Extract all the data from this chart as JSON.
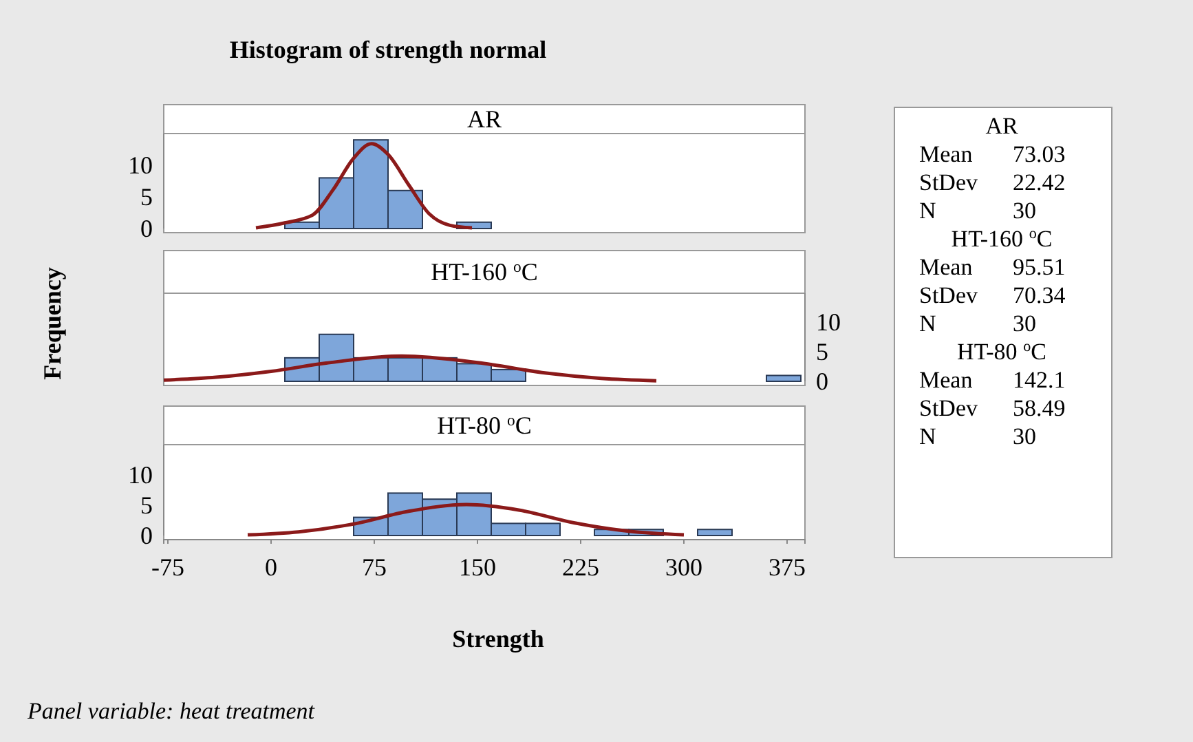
{
  "chart_data": [
    {
      "type": "other",
      "title": "Histogram of strength normal",
      "annotations": [
        "AR",
        "Mean",
        "73.03",
        "StDev",
        "22.42",
        "N",
        "30",
        "HT-160 $^{o}$C",
        "Mean",
        "95.51",
        "StDev",
        "70.34",
        "N",
        "30",
        "HT-80 $^{o}$C",
        "Mean",
        "142.1",
        "StDev",
        "58.49",
        "N",
        "30",
        "Panel variable: heat treatment"
      ]
    },
    {
      "type": "histogram",
      "title": "AR",
      "bins": [
        10,
        35,
        60,
        85,
        110,
        135,
        160,
        185,
        210,
        235,
        260,
        285,
        310,
        335,
        360,
        385
      ],
      "xlim": [
        -78,
        388
      ],
      "ylim": [
        0,
        15
      ],
      "yticks": [
        0,
        5,
        10
      ],
      "tick_labels": "y",
      "series": [
        {
          "type": "histogram",
          "color": "#7ea6da",
          "values": [
            1,
            8,
            14,
            6,
            0,
            1,
            0,
            0,
            0,
            0,
            0,
            0,
            0,
            0,
            0
          ]
        },
        {
          "type": "line",
          "color": "#8b1a1a",
          "x": [
            -11,
            10,
            30,
            45,
            60,
            73,
            85,
            100,
            115,
            130,
            146
          ],
          "values": [
            0.1,
            0.9,
            2.1,
            6.1,
            11.1,
            13.4,
            11.7,
            6.9,
            2.3,
            0.5,
            0.1
          ]
        }
      ]
    },
    {
      "type": "histogram",
      "title": "HT-160 $^{o}$C",
      "ylabel": "Frequency",
      "bins": [
        10,
        35,
        60,
        85,
        110,
        135,
        160,
        185,
        210,
        235,
        260,
        285,
        310,
        335,
        360,
        385
      ],
      "xlim": [
        -78,
        388
      ],
      "y2lim": [
        0,
        15
      ],
      "y2ticks": [
        0,
        5,
        10
      ],
      "tick_labels": "y",
      "series": [
        {
          "type": "histogram",
          "axis": "y2",
          "color": "#7ea6da",
          "values": [
            4,
            8,
            4,
            4,
            4,
            3,
            2,
            0,
            0,
            0,
            0,
            0,
            0,
            0,
            1
          ]
        },
        {
          "type": "line",
          "axis": "y2",
          "color": "#8b1a1a",
          "x": [
            -78,
            -40,
            0,
            40,
            95,
            150,
            200,
            240,
            280
          ],
          "values": [
            0.2,
            0.7,
            1.7,
            3.1,
            4.3,
            3.2,
            1.4,
            0.5,
            0.1
          ]
        }
      ]
    },
    {
      "type": "histogram",
      "title": "HT-80 $^{o}$C",
      "xlabel": "Strength",
      "bins": [
        60,
        85,
        110,
        135,
        160,
        185,
        210,
        235,
        260,
        285,
        310,
        335
      ],
      "xlim": [
        -78,
        388
      ],
      "xticks": [
        -75,
        0,
        75,
        150,
        225,
        300,
        375
      ],
      "ylim": [
        0,
        15
      ],
      "yticks": [
        0,
        5,
        10
      ],
      "series": [
        {
          "type": "histogram",
          "color": "#7ea6da",
          "values": [
            3,
            7,
            6,
            7,
            2,
            2,
            0,
            1,
            1,
            0,
            1
          ]
        },
        {
          "type": "line",
          "color": "#8b1a1a",
          "x": [
            -17,
            20,
            60,
            100,
            142,
            180,
            220,
            260,
            300
          ],
          "values": [
            0.1,
            0.6,
            1.9,
            4,
            5.1,
            4.2,
            2.1,
            0.7,
            0.1
          ]
        }
      ]
    }
  ]
}
